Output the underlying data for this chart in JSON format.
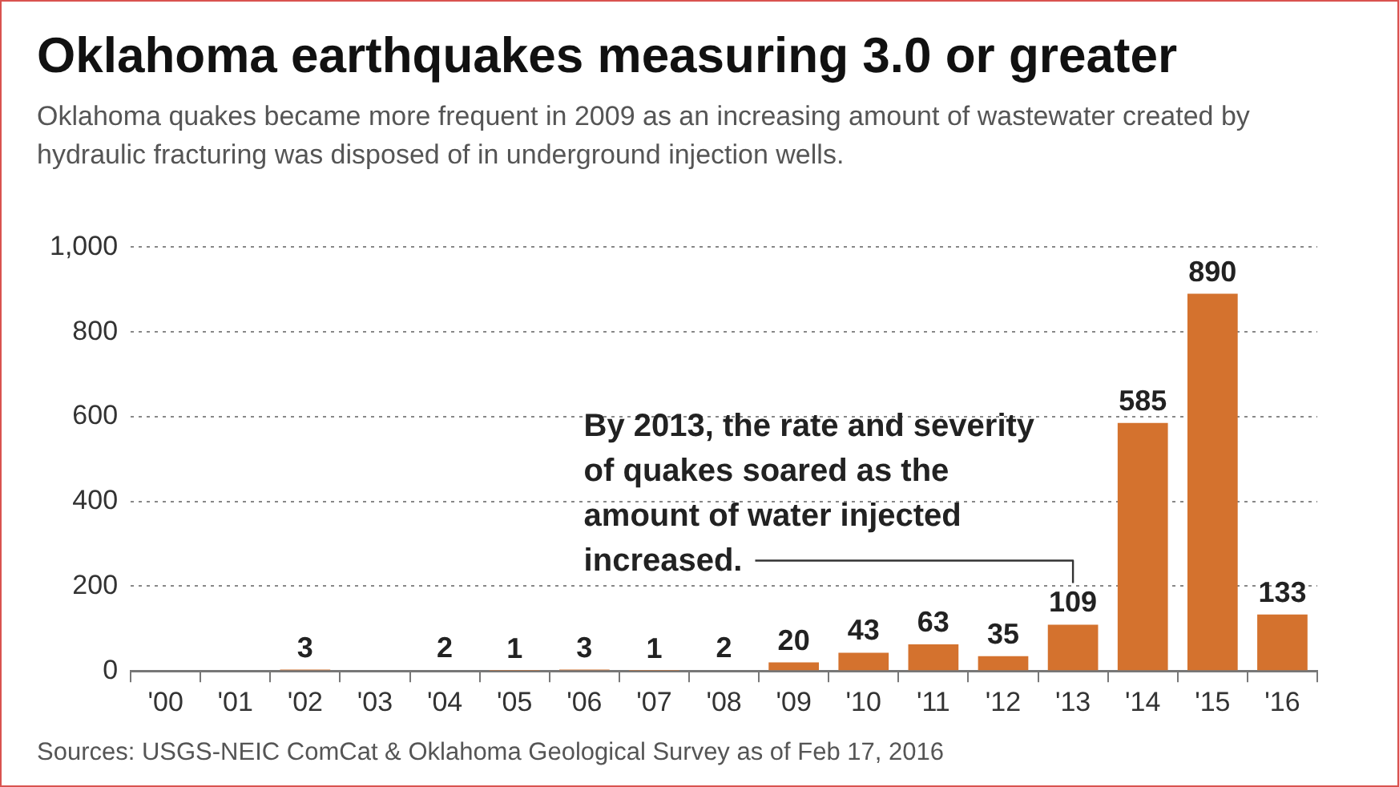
{
  "chart_data": {
    "type": "bar",
    "title": "Oklahoma earthquakes measuring 3.0 or greater",
    "subtitle": "Oklahoma quakes became more frequent in 2009 as an increasing amount of wastewater created by hydraulic fracturing was disposed of in underground injection wells.",
    "categories": [
      "'00",
      "'01",
      "'02",
      "'03",
      "'04",
      "'05",
      "'06",
      "'07",
      "'08",
      "'09",
      "'10",
      "'11",
      "'12",
      "'13",
      "'14",
      "'15",
      "'16"
    ],
    "values": [
      null,
      null,
      3,
      null,
      2,
      1,
      3,
      1,
      2,
      20,
      43,
      63,
      35,
      109,
      585,
      890,
      133
    ],
    "color": "#d4722e",
    "ylim": [
      0,
      1000
    ],
    "yticks": [
      0,
      200,
      400,
      600,
      800,
      {
        "value": 1000,
        "label": "1,000"
      }
    ],
    "grid": "y",
    "legend": false,
    "data_labels": true,
    "annotations": [
      {
        "text": "By 2013, the rate and severity of quakes soared as the amount of water injected increased.",
        "x": "'13",
        "y": 109
      },
      "Sources: USGS-NEIC ComCat & Oklahoma Geological Survey as of Feb 17, 2016"
    ]
  }
}
